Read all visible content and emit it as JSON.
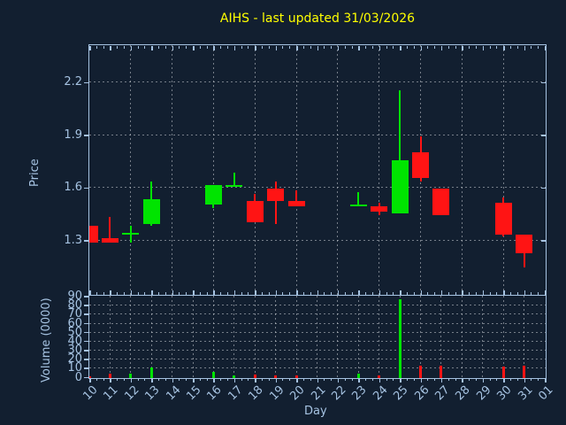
{
  "title": {
    "text": "AIHS - last updated 31/03/2026"
  },
  "colors": {
    "background": "#121f30",
    "axis": "#a6c3e2",
    "grid": "rgba(200,205,210,0.55)",
    "title": "#ffff00",
    "up": "#00e400",
    "down": "#ff1414"
  },
  "chart_data": {
    "type": "candlestick",
    "title": "AIHS - last updated 31/03/2026",
    "xlabel": "Day",
    "x_labels": [
      "10",
      "11",
      "12",
      "13",
      "14",
      "15",
      "16",
      "17",
      "18",
      "19",
      "20",
      "21",
      "22",
      "23",
      "24",
      "25",
      "26",
      "27",
      "28",
      "29",
      "30",
      "31",
      "01"
    ],
    "price_axis": {
      "label": "Price",
      "ticks": [
        1.3,
        1.6,
        1.9,
        2.2
      ],
      "range": [
        0.98,
        2.42
      ],
      "grid": "dotted"
    },
    "volume_axis": {
      "label": "Volume (0000)",
      "ticks": [
        0,
        10,
        20,
        30,
        40,
        50,
        60,
        70,
        80,
        90
      ],
      "range": [
        0,
        90
      ],
      "grid": "dotted"
    },
    "candles": [
      {
        "day": "10",
        "open": 1.38,
        "high": 1.38,
        "low": 1.28,
        "close": 1.28,
        "volume": 1
      },
      {
        "day": "11",
        "open": 1.31,
        "high": 1.43,
        "low": 1.28,
        "close": 1.28,
        "volume": 4
      },
      {
        "day": "12",
        "open": 1.33,
        "high": 1.38,
        "low": 1.28,
        "close": 1.34,
        "volume": 4
      },
      {
        "day": "13",
        "open": 1.39,
        "high": 1.63,
        "low": 1.38,
        "close": 1.53,
        "volume": 11
      },
      {
        "day": "16",
        "open": 1.5,
        "high": 1.61,
        "low": 1.48,
        "close": 1.61,
        "volume": 6
      },
      {
        "day": "17",
        "open": 1.6,
        "high": 1.68,
        "low": 1.6,
        "close": 1.61,
        "volume": 2
      },
      {
        "day": "18",
        "open": 1.52,
        "high": 1.56,
        "low": 1.4,
        "close": 1.4,
        "volume": 3
      },
      {
        "day": "19",
        "open": 1.59,
        "high": 1.63,
        "low": 1.39,
        "close": 1.52,
        "volume": 2
      },
      {
        "day": "20",
        "open": 1.52,
        "high": 1.58,
        "low": 1.49,
        "close": 1.49,
        "volume": 2
      },
      {
        "day": "23",
        "open": 1.49,
        "high": 1.57,
        "low": 1.49,
        "close": 1.5,
        "volume": 4
      },
      {
        "day": "24",
        "open": 1.49,
        "high": 1.51,
        "low": 1.44,
        "close": 1.46,
        "volume": 2
      },
      {
        "day": "25",
        "open": 1.45,
        "high": 2.15,
        "low": 1.45,
        "close": 1.75,
        "volume": 87
      },
      {
        "day": "26",
        "open": 1.8,
        "high": 1.89,
        "low": 1.63,
        "close": 1.65,
        "volume": 13
      },
      {
        "day": "27",
        "open": 1.59,
        "high": 1.59,
        "low": 1.44,
        "close": 1.44,
        "volume": 13
      },
      {
        "day": "30",
        "open": 1.51,
        "high": 1.54,
        "low": 1.32,
        "close": 1.33,
        "volume": 12
      },
      {
        "day": "31",
        "open": 1.33,
        "high": 1.33,
        "low": 1.14,
        "close": 1.22,
        "volume": 13
      }
    ],
    "legend": null,
    "notes": "No data plotted for days 14,15,21,22,28,29,01 (weekend/future gaps)"
  }
}
